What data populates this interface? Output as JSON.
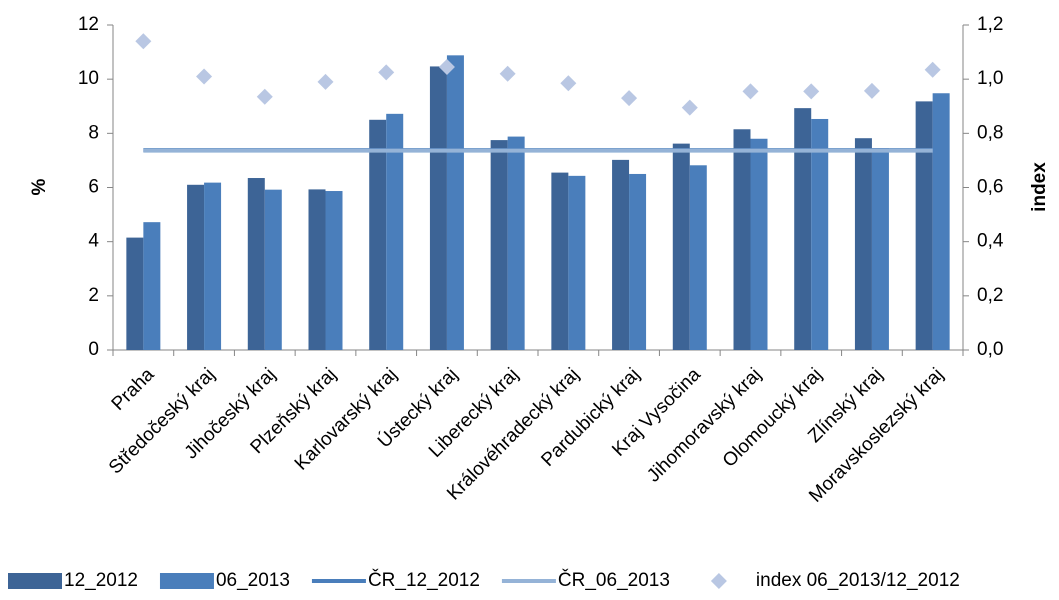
{
  "chart_data": {
    "type": "bar",
    "y_label": "%",
    "y2_label": "index",
    "categories": [
      "Praha",
      "Středočeský kraj",
      "Jihočeský kraj",
      "Plzeňský kraj",
      "Karlovarský kraj",
      "Ústecký kraj",
      "Liberecký kraj",
      "Královéhradecký kraj",
      "Pardubický kraj",
      "Kraj Vysočina",
      "Jihomoravský kraj",
      "Olomoucký kraj",
      "Zlínský kraj",
      "Moravskoslezský kraj"
    ],
    "series": [
      {
        "name": "12_2012",
        "type": "bar",
        "color": "#3d6496",
        "values": [
          4.15,
          6.1,
          6.35,
          5.93,
          8.5,
          10.47,
          7.75,
          6.55,
          7.02,
          7.62,
          8.15,
          8.93,
          7.82,
          9.18
        ]
      },
      {
        "name": "06_2013",
        "type": "bar",
        "color": "#4a7ebb",
        "values": [
          4.72,
          6.18,
          5.92,
          5.87,
          8.72,
          10.88,
          7.88,
          6.43,
          6.5,
          6.82,
          7.8,
          8.53,
          7.45,
          9.48
        ]
      },
      {
        "name": "ČR_12_2012",
        "type": "line",
        "color": "#4a7ebb",
        "value": 7.38
      },
      {
        "name": "ČR_06_2013",
        "type": "line",
        "color": "#95b3d7",
        "value": 7.36
      },
      {
        "name": "index 06_2013/12_2012",
        "type": "scatter",
        "axis": "y2",
        "color": "#b9c7e3",
        "values": [
          1.14,
          1.01,
          0.935,
          0.99,
          1.025,
          1.045,
          1.02,
          0.985,
          0.93,
          0.895,
          0.955,
          0.955,
          0.957,
          1.035
        ]
      }
    ],
    "ylim": [
      0,
      12
    ],
    "yticks": [
      0,
      2,
      4,
      6,
      8,
      10,
      12
    ],
    "y2lim": [
      0,
      1.2
    ],
    "y2ticks": [
      {
        "value": 0,
        "label": "0,0"
      },
      {
        "value": 0.2,
        "label": "0,2"
      },
      {
        "value": 0.4,
        "label": "0,4"
      },
      {
        "value": 0.6,
        "label": "0,6"
      },
      {
        "value": 0.8,
        "label": "0,8"
      },
      {
        "value": 1,
        "label": "1,0"
      },
      {
        "value": 1.2,
        "label": "1,2"
      }
    ],
    "grid": false
  }
}
